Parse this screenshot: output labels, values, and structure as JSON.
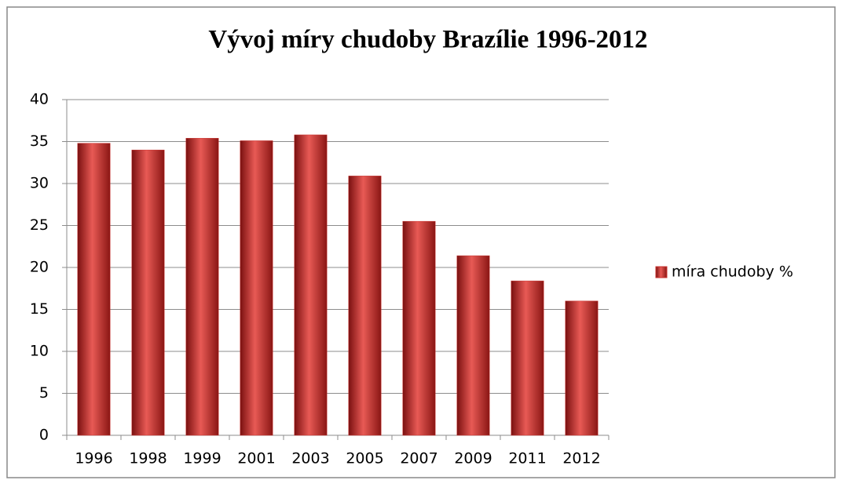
{
  "chart_data": {
    "type": "bar",
    "title": "Vývoj míry chudoby Brazílie  1996-2012",
    "categories": [
      "1996",
      "1998",
      "1999",
      "2001",
      "2003",
      "2005",
      "2007",
      "2009",
      "2011",
      "2012"
    ],
    "series": [
      {
        "name": "míra chudoby %",
        "color": "#c8302c",
        "values": [
          34.8,
          34.0,
          35.4,
          35.1,
          35.8,
          30.9,
          25.5,
          21.4,
          18.4,
          16.0
        ]
      }
    ],
    "ylim": [
      0,
      40
    ],
    "yticks": [
      0,
      5,
      10,
      15,
      20,
      25,
      30,
      35,
      40
    ],
    "grid": true,
    "legend": "right"
  }
}
